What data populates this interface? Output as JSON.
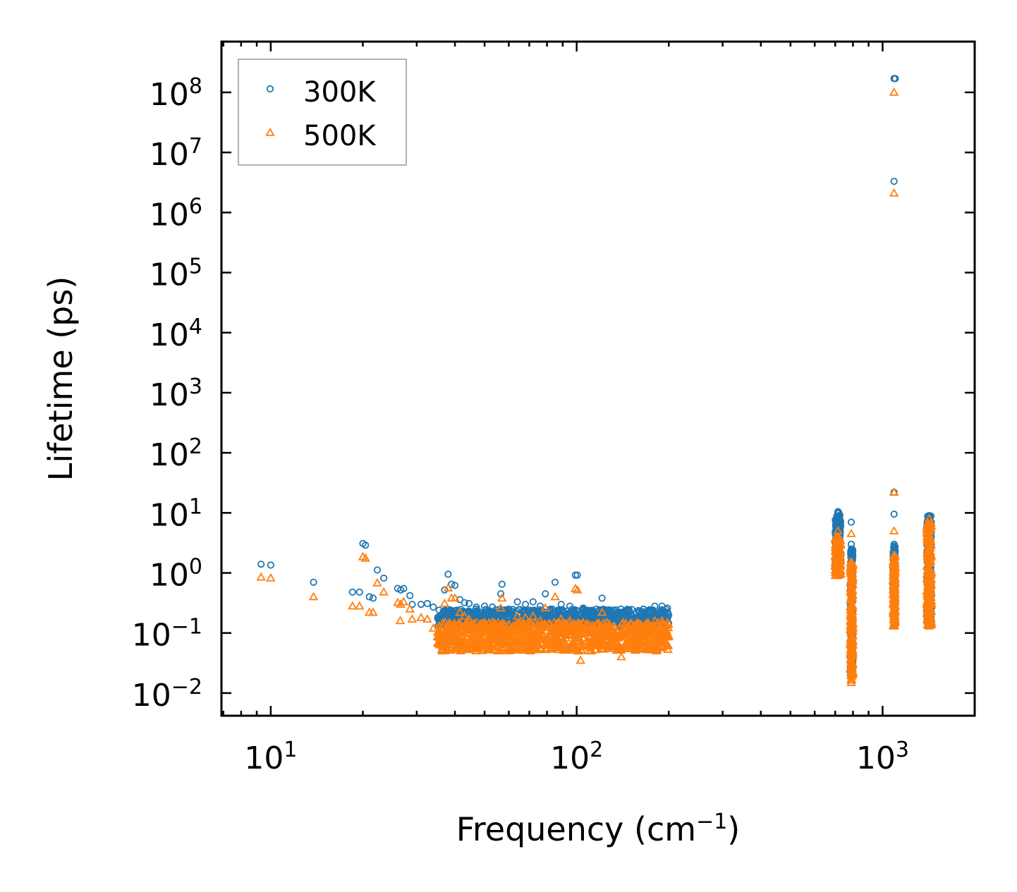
{
  "chart_data": {
    "type": "scatter",
    "title": "",
    "xlabel": "Frequency (cm",
    "xlabel_sup": "−1",
    "xlabel_tail": ")",
    "ylabel": "Lifetime (ps)",
    "xscale": "log",
    "yscale": "log",
    "xlim": [
      6.9,
      2000
    ],
    "ylim": [
      0.0042,
      700000000
    ],
    "x_ticks": [
      {
        "value": 10,
        "base": "10",
        "exp": "1"
      },
      {
        "value": 100,
        "base": "10",
        "exp": "2"
      },
      {
        "value": 1000,
        "base": "10",
        "exp": "3"
      }
    ],
    "y_ticks": [
      {
        "value": 0.01,
        "base": "10",
        "exp": "−2"
      },
      {
        "value": 0.1,
        "base": "10",
        "exp": "−1"
      },
      {
        "value": 1,
        "base": "10",
        "exp": "0"
      },
      {
        "value": 10,
        "base": "10",
        "exp": "1"
      },
      {
        "value": 100,
        "base": "10",
        "exp": "2"
      },
      {
        "value": 1000,
        "base": "10",
        "exp": "3"
      },
      {
        "value": 10000,
        "base": "10",
        "exp": "4"
      },
      {
        "value": 100000,
        "base": "10",
        "exp": "5"
      },
      {
        "value": 1000000,
        "base": "10",
        "exp": "6"
      },
      {
        "value": 10000000,
        "base": "10",
        "exp": "7"
      },
      {
        "value": 100000000,
        "base": "10",
        "exp": "8"
      }
    ],
    "legend_position": "top-left",
    "series": [
      {
        "name": "300K",
        "marker": "circle",
        "color": "#1f77b4",
        "points": [
          [
            9.3,
            1.4
          ],
          [
            10.0,
            1.35
          ],
          [
            13.8,
            0.7
          ],
          [
            18.5,
            0.48
          ],
          [
            19.5,
            0.48
          ],
          [
            20.0,
            3.1
          ],
          [
            20.4,
            2.9
          ],
          [
            21.0,
            0.4
          ],
          [
            21.6,
            0.38
          ],
          [
            22.3,
            1.12
          ],
          [
            23.4,
            0.82
          ],
          [
            26.0,
            0.55
          ],
          [
            26.6,
            0.52
          ],
          [
            27.2,
            0.55
          ],
          [
            28.5,
            0.42
          ],
          [
            29.0,
            0.3
          ],
          [
            31.0,
            0.3
          ],
          [
            32.5,
            0.31
          ],
          [
            34.0,
            0.27
          ],
          [
            35.5,
            0.24
          ],
          [
            37.0,
            0.52
          ],
          [
            38.0,
            0.95
          ],
          [
            39.0,
            0.65
          ],
          [
            40.0,
            0.62
          ],
          [
            41.5,
            0.36
          ],
          [
            43.0,
            0.32
          ],
          [
            44.5,
            0.31
          ],
          [
            47.0,
            0.27
          ],
          [
            50.0,
            0.28
          ],
          [
            53.0,
            0.27
          ],
          [
            56.5,
            0.45
          ],
          [
            57.0,
            0.65
          ],
          [
            60.0,
            0.25
          ],
          [
            64.0,
            0.33
          ],
          [
            68.0,
            0.3
          ],
          [
            72.0,
            0.33
          ],
          [
            76.0,
            0.28
          ],
          [
            79.0,
            0.45
          ],
          [
            82.0,
            0.25
          ],
          [
            85.0,
            0.7
          ],
          [
            89.0,
            0.3
          ],
          [
            95.0,
            0.28
          ],
          [
            99.0,
            0.92
          ],
          [
            100.5,
            0.92
          ],
          [
            105.0,
            0.26
          ],
          [
            110.0,
            0.22
          ],
          [
            116.0,
            0.25
          ],
          [
            121.0,
            0.38
          ],
          [
            125.0,
            0.22
          ],
          [
            132.0,
            0.24
          ],
          [
            140.0,
            0.22
          ],
          [
            150.0,
            0.2
          ],
          [
            160.0,
            0.22
          ],
          [
            170.0,
            0.2
          ],
          [
            180.0,
            0.28
          ],
          [
            190.0,
            0.28
          ],
          [
            198.0,
            0.26
          ],
          [
            200.0,
            0.2
          ],
          [
            715,
            10.5
          ],
          [
            715,
            8
          ],
          [
            715,
            6
          ],
          [
            715,
            4
          ],
          [
            715,
            3
          ],
          [
            715,
            2
          ],
          [
            720,
            10
          ],
          [
            720,
            5
          ],
          [
            720,
            2.5
          ],
          [
            790,
            7
          ],
          [
            790,
            3
          ],
          [
            790,
            2.5
          ],
          [
            790,
            1.5
          ],
          [
            790,
            1.0
          ],
          [
            1090,
            170000000
          ],
          [
            1100,
            170000000
          ],
          [
            1090,
            3300000
          ],
          [
            1090,
            22
          ],
          [
            1090,
            9.5
          ],
          [
            1090,
            3
          ],
          [
            1090,
            1.8
          ],
          [
            1090,
            0.9
          ],
          [
            1090,
            0.5
          ],
          [
            1420,
            9
          ],
          [
            1420,
            6
          ],
          [
            1420,
            4
          ],
          [
            1420,
            2.5
          ],
          [
            1420,
            1.5
          ],
          [
            1420,
            0.9
          ],
          [
            1420,
            0.5
          ],
          [
            1420,
            0.25
          ]
        ],
        "bands": [
          {
            "x_from": 35,
            "x_to": 200,
            "y_lo": 0.13,
            "y_hi": 0.25,
            "count": 900
          },
          {
            "x_from": 700,
            "x_to": 730,
            "y_lo": 1.2,
            "y_hi": 10,
            "count": 150
          },
          {
            "x_from": 785,
            "x_to": 800,
            "y_lo": 0.02,
            "y_hi": 2.5,
            "count": 160
          },
          {
            "x_from": 1082,
            "x_to": 1100,
            "y_lo": 0.14,
            "y_hi": 3,
            "count": 120
          },
          {
            "x_from": 1395,
            "x_to": 1445,
            "y_lo": 0.14,
            "y_hi": 9,
            "count": 220
          }
        ]
      },
      {
        "name": "500K",
        "marker": "triangle",
        "color": "#ff7f0e",
        "points": [
          [
            9.3,
            0.85
          ],
          [
            10.0,
            0.82
          ],
          [
            13.8,
            0.4
          ],
          [
            18.5,
            0.28
          ],
          [
            19.5,
            0.28
          ],
          [
            20.0,
            1.85
          ],
          [
            20.4,
            1.75
          ],
          [
            21.0,
            0.22
          ],
          [
            21.6,
            0.22
          ],
          [
            22.3,
            0.68
          ],
          [
            23.4,
            0.48
          ],
          [
            26.0,
            0.32
          ],
          [
            26.6,
            0.3
          ],
          [
            26.5,
            0.16
          ],
          [
            27.2,
            0.33
          ],
          [
            28.5,
            0.25
          ],
          [
            29.0,
            0.17
          ],
          [
            31.0,
            0.18
          ],
          [
            32.5,
            0.17
          ],
          [
            34.0,
            0.12
          ],
          [
            35.5,
            0.13
          ],
          [
            37.0,
            0.31
          ],
          [
            38.0,
            0.56
          ],
          [
            39.0,
            0.38
          ],
          [
            40.0,
            0.38
          ],
          [
            41.5,
            0.22
          ],
          [
            43.0,
            0.19
          ],
          [
            44.5,
            0.17
          ],
          [
            47.0,
            0.15
          ],
          [
            50.0,
            0.15
          ],
          [
            53.0,
            0.15
          ],
          [
            56.5,
            0.26
          ],
          [
            57.0,
            0.38
          ],
          [
            60.0,
            0.14
          ],
          [
            64.0,
            0.19
          ],
          [
            68.0,
            0.18
          ],
          [
            72.0,
            0.19
          ],
          [
            76.0,
            0.16
          ],
          [
            79.0,
            0.26
          ],
          [
            82.0,
            0.14
          ],
          [
            85.0,
            0.4
          ],
          [
            89.0,
            0.17
          ],
          [
            95.0,
            0.16
          ],
          [
            99.0,
            0.55
          ],
          [
            100.5,
            0.52
          ],
          [
            103,
            0.035
          ],
          [
            105.0,
            0.15
          ],
          [
            110.0,
            0.12
          ],
          [
            116.0,
            0.14
          ],
          [
            121.0,
            0.22
          ],
          [
            125.0,
            0.12
          ],
          [
            132.0,
            0.13
          ],
          [
            140.0,
            0.04
          ],
          [
            150.0,
            0.11
          ],
          [
            160.0,
            0.12
          ],
          [
            170.0,
            0.11
          ],
          [
            180.0,
            0.16
          ],
          [
            190.0,
            0.16
          ],
          [
            198.0,
            0.15
          ],
          [
            200.0,
            0.09
          ],
          [
            715,
            5
          ],
          [
            715,
            3.5
          ],
          [
            715,
            2
          ],
          [
            715,
            1.2
          ],
          [
            715,
            0.9
          ],
          [
            790,
            4.5
          ],
          [
            790,
            1.5
          ],
          [
            790,
            0.6
          ],
          [
            790,
            0.015
          ],
          [
            1090,
            100000000
          ],
          [
            1090,
            2100000
          ],
          [
            1090,
            22
          ],
          [
            1090,
            5
          ],
          [
            1090,
            1.5
          ],
          [
            1090,
            0.5
          ],
          [
            1090,
            0.13
          ],
          [
            1420,
            8
          ],
          [
            1420,
            5
          ],
          [
            1420,
            3
          ],
          [
            1420,
            1.5
          ],
          [
            1420,
            0.7
          ],
          [
            1420,
            0.3
          ],
          [
            1420,
            0.13
          ]
        ],
        "bands": [
          {
            "x_from": 35,
            "x_to": 200,
            "y_lo": 0.05,
            "y_hi": 0.15,
            "count": 1000
          },
          {
            "x_from": 700,
            "x_to": 730,
            "y_lo": 0.9,
            "y_hi": 4,
            "count": 150
          },
          {
            "x_from": 785,
            "x_to": 800,
            "y_lo": 0.016,
            "y_hi": 1.5,
            "count": 180
          },
          {
            "x_from": 1082,
            "x_to": 1100,
            "y_lo": 0.13,
            "y_hi": 2,
            "count": 100
          },
          {
            "x_from": 1395,
            "x_to": 1445,
            "y_lo": 0.13,
            "y_hi": 7,
            "count": 220
          }
        ]
      }
    ]
  }
}
